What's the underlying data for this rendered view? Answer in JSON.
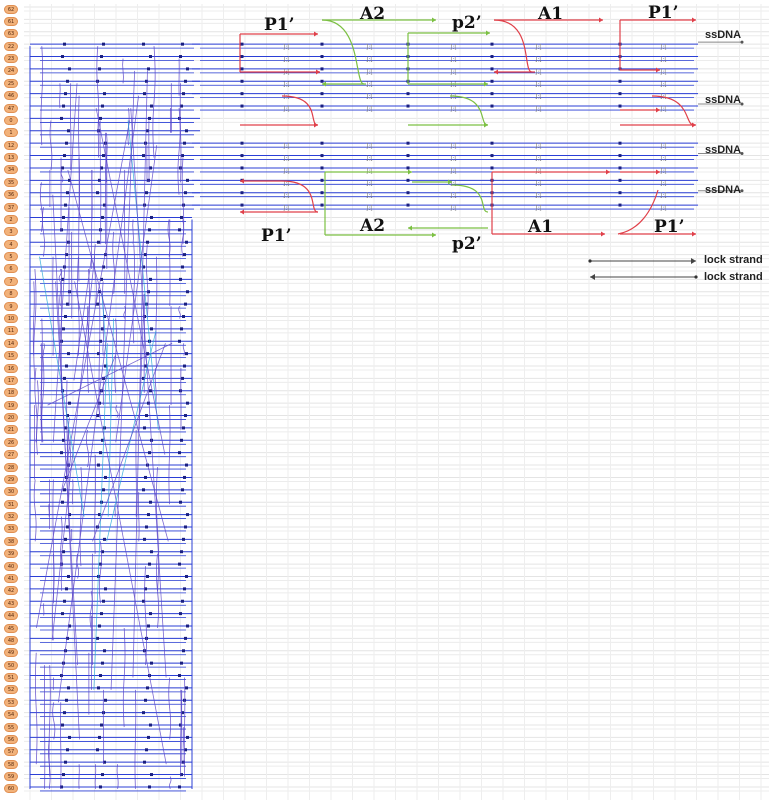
{
  "diagram": {
    "row_numbers": [
      "62",
      "61",
      "63",
      "22",
      "23",
      "24",
      "25",
      "46",
      "47",
      "0",
      "1",
      "12",
      "13",
      "34",
      "35",
      "36",
      "37",
      "2",
      "3",
      "4",
      "5",
      "6",
      "7",
      "8",
      "9",
      "10",
      "11",
      "14",
      "15",
      "16",
      "17",
      "18",
      "19",
      "20",
      "21",
      "26",
      "27",
      "28",
      "29",
      "30",
      "31",
      "32",
      "33",
      "38",
      "39",
      "40",
      "41",
      "42",
      "43",
      "44",
      "45",
      "48",
      "49",
      "50",
      "51",
      "52",
      "53",
      "54",
      "55",
      "56",
      "57",
      "58",
      "59",
      "60"
    ],
    "top_labels": {
      "p1": "P1’",
      "a2": "A2",
      "p2": "p2’",
      "a1": "A1",
      "p1b": "P1’"
    },
    "bottom_labels": {
      "p1": "P1’",
      "a2": "A2",
      "p2": "p2’",
      "a1": "A1",
      "p1b": "P1’"
    },
    "ssdna_labels": [
      "ssDNA",
      "ssDNA",
      "ssDNA",
      "ssDNA"
    ],
    "lock_labels": [
      "lock strand",
      "lock strand"
    ],
    "colors": {
      "scaffold": "#2b3fd6",
      "crossover": "#5b45c9",
      "cyan": "#29a9d8",
      "red": "#e0404a",
      "green": "#7cc043",
      "grid": "#d9d9d9",
      "badge": "#f2b27a"
    }
  }
}
